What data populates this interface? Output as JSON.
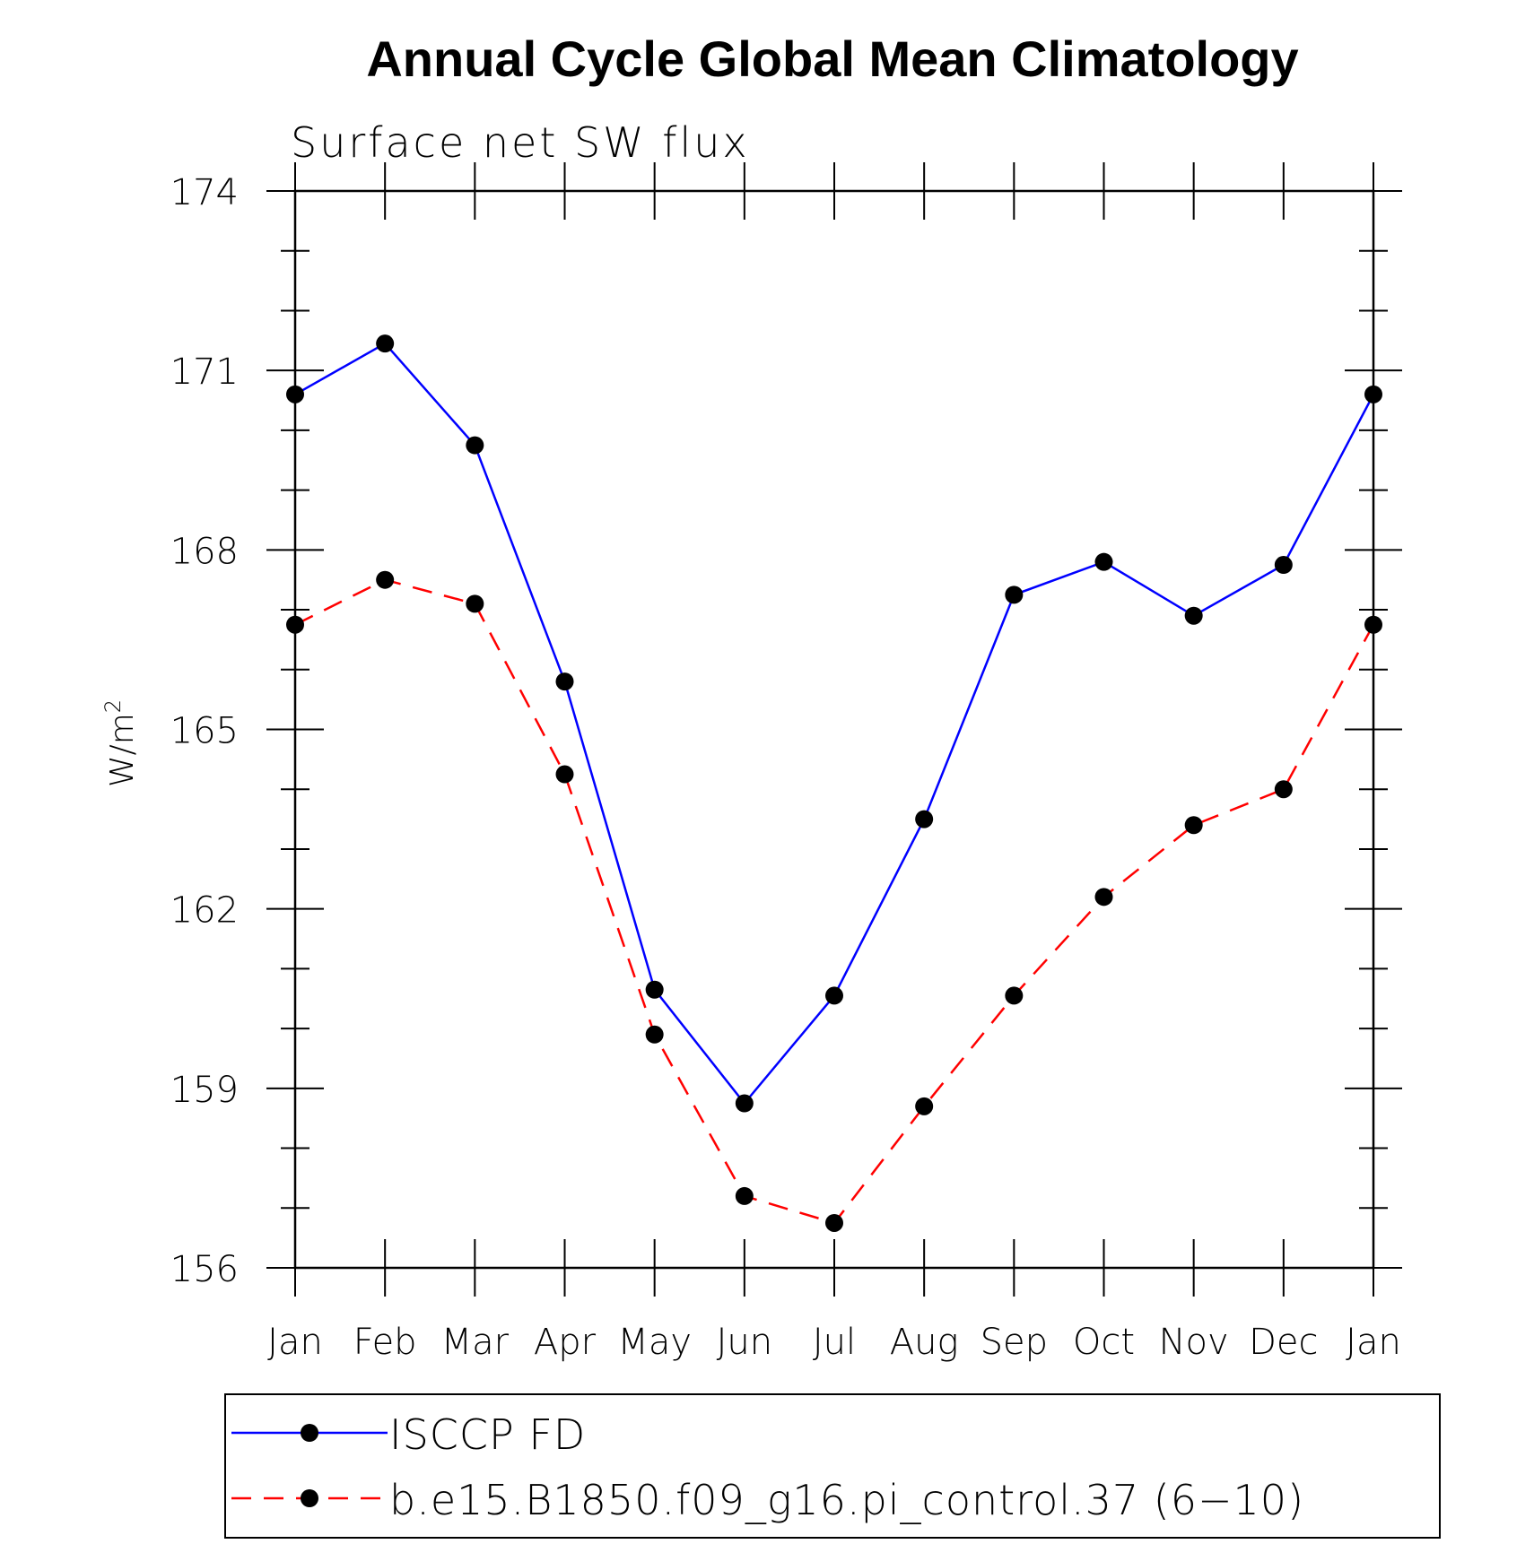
{
  "chart_data": {
    "type": "line",
    "title": "Annual Cycle Global Mean Climatology",
    "subtitle": "Surface net SW flux",
    "ylabel": "W/m",
    "ylabel_superscript": "2",
    "xlabel": "",
    "categories": [
      "Jan",
      "Feb",
      "Mar",
      "Apr",
      "May",
      "Jun",
      "Jul",
      "Aug",
      "Sep",
      "Oct",
      "Nov",
      "Dec",
      "Jan"
    ],
    "ylim": [
      156,
      174
    ],
    "yticks": [
      "156",
      "159",
      "162",
      "165",
      "168",
      "171",
      "174"
    ],
    "grid": false,
    "legend_position": "bottom",
    "series": [
      {
        "name": "ISCCP FD",
        "color": "#0000ff",
        "line_style": "solid",
        "marker": "filled-circle",
        "values": [
          170.6,
          171.45,
          169.75,
          165.8,
          160.65,
          158.75,
          160.55,
          163.5,
          167.25,
          167.8,
          166.9,
          167.75,
          170.6
        ]
      },
      {
        "name": "b.e15.B1850.f09_g16.pi_control.37 (6−10)",
        "color": "#ff0000",
        "line_style": "dashed",
        "marker": "filled-circle",
        "values": [
          166.75,
          167.5,
          167.1,
          164.25,
          159.9,
          157.2,
          156.75,
          158.7,
          160.55,
          162.2,
          163.4,
          164.0,
          166.75
        ]
      }
    ]
  }
}
